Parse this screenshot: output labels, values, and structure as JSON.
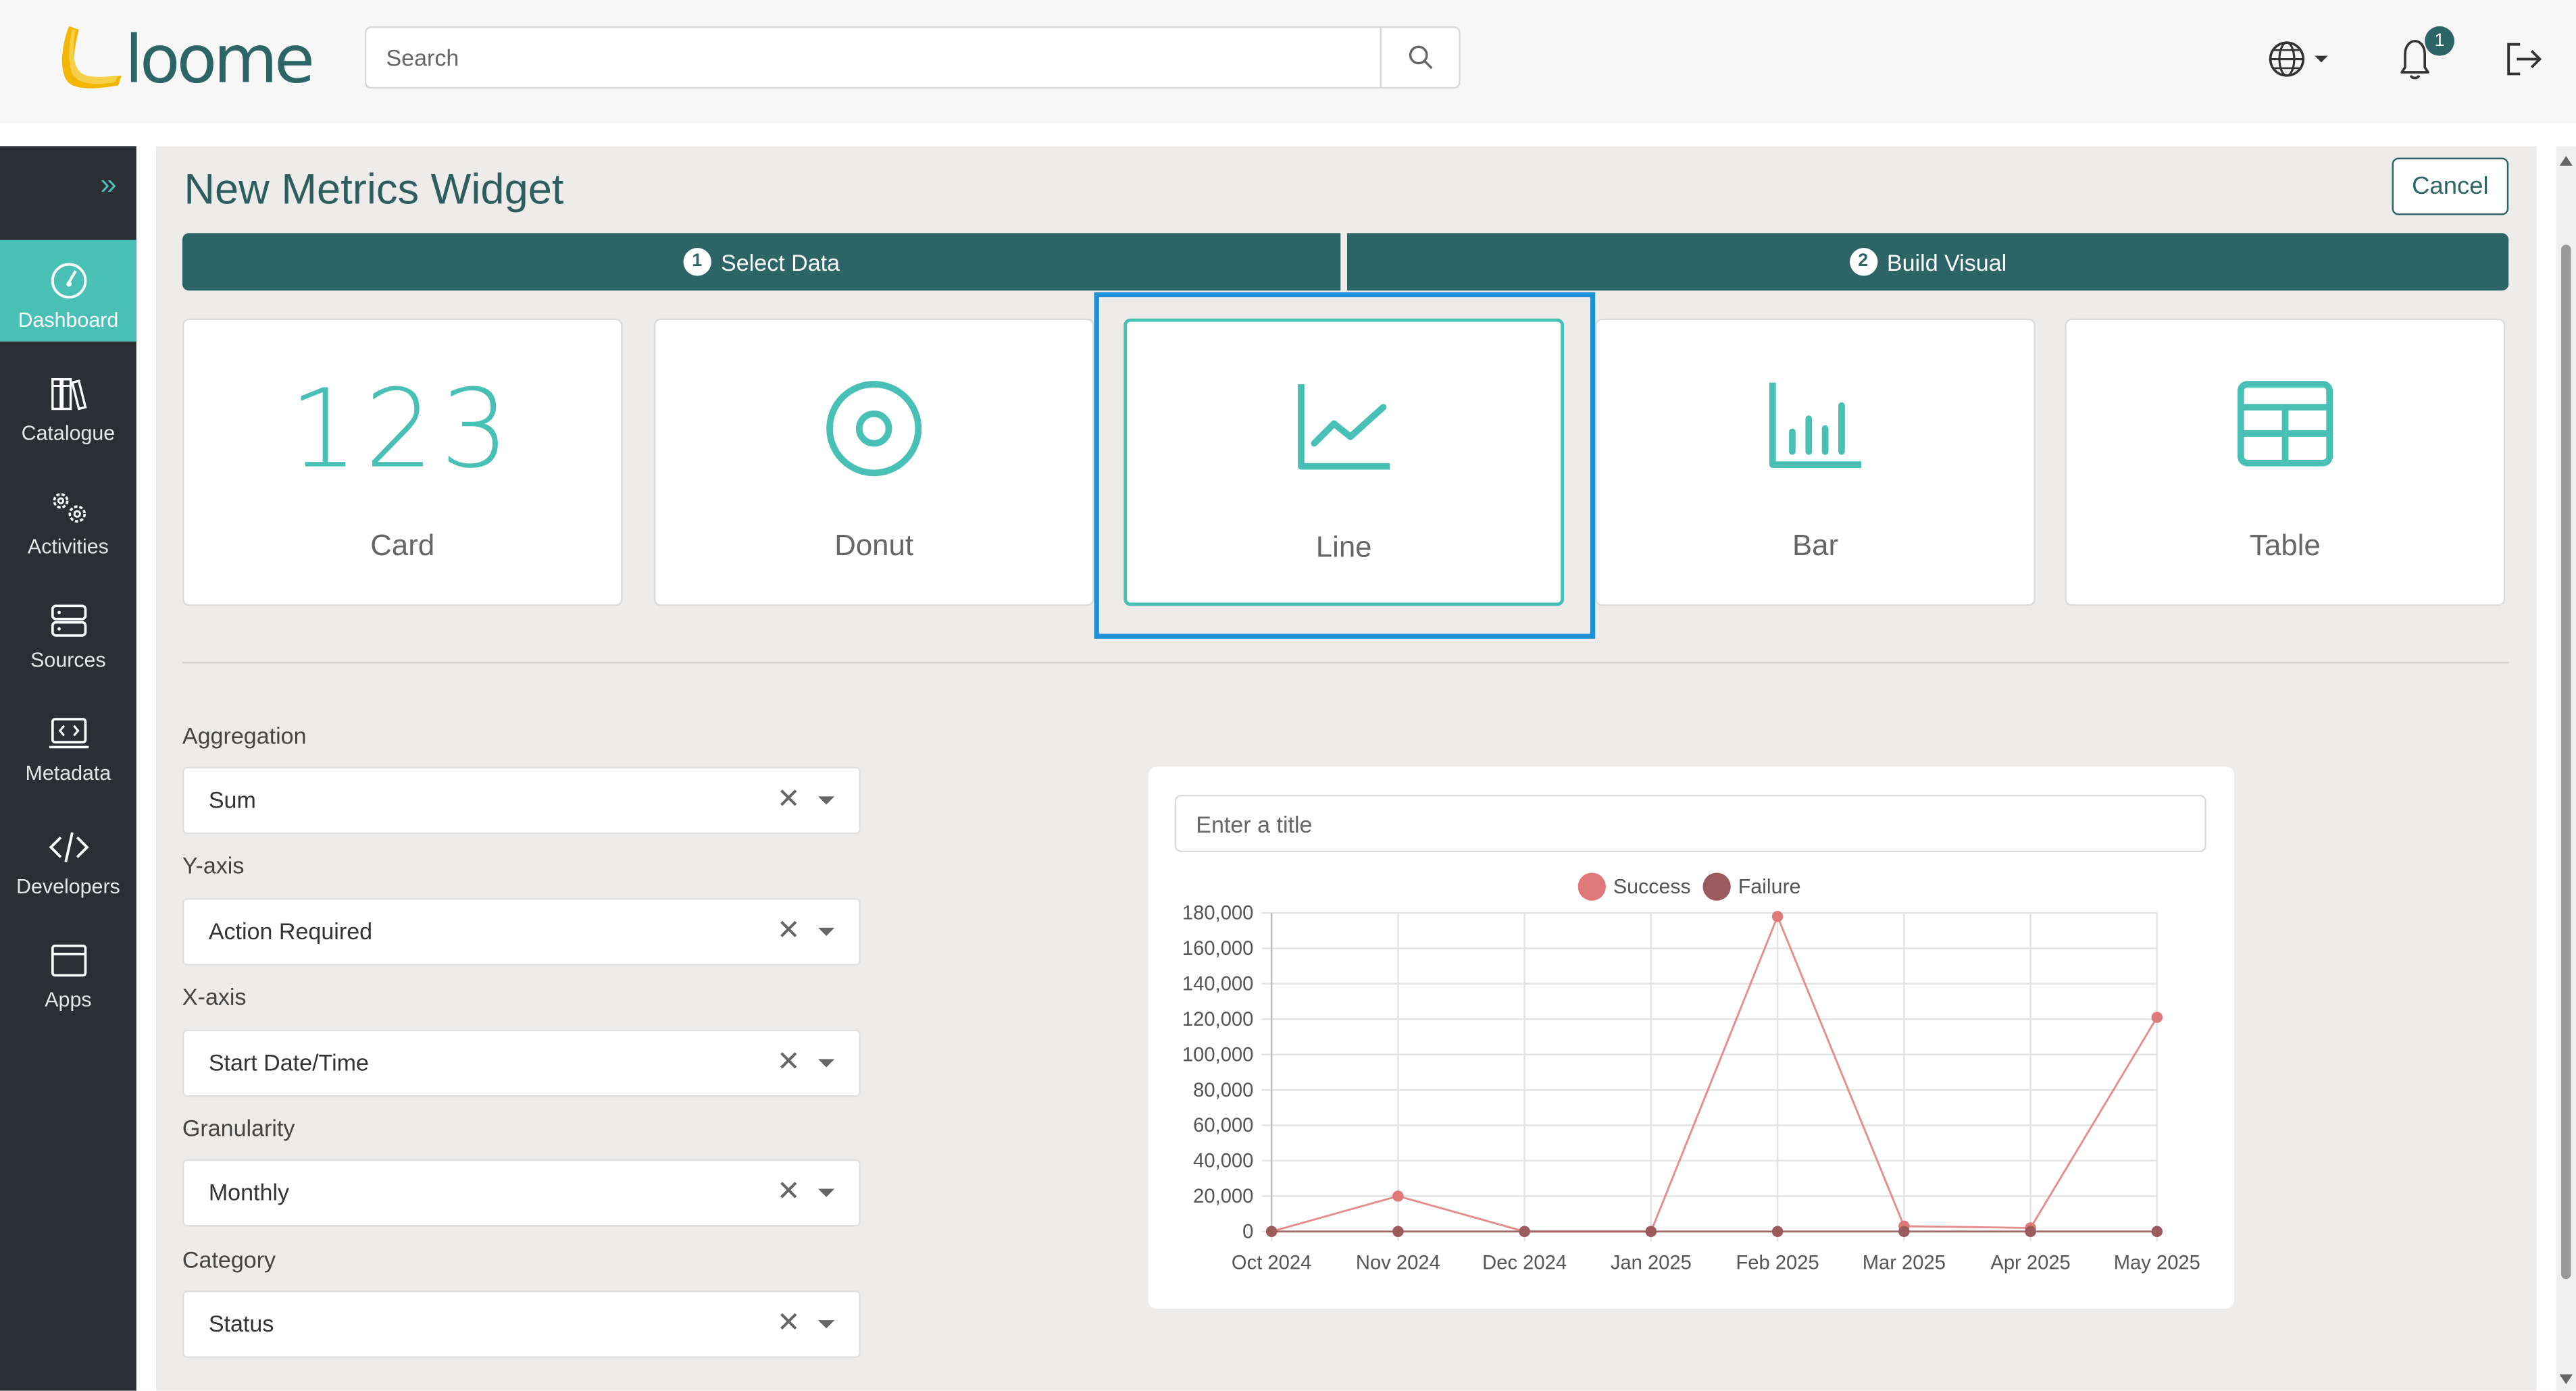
{
  "header": {
    "logo_text": "loome",
    "search_placeholder": "Search",
    "notification_count": "1"
  },
  "sidebar": {
    "items": [
      {
        "label": "Dashboard",
        "icon": "dashboard-icon",
        "active": true
      },
      {
        "label": "Catalogue",
        "icon": "catalogue-icon"
      },
      {
        "label": "Activities",
        "icon": "activities-icon"
      },
      {
        "label": "Sources",
        "icon": "sources-icon"
      },
      {
        "label": "Metadata",
        "icon": "metadata-icon"
      },
      {
        "label": "Developers",
        "icon": "developers-icon"
      },
      {
        "label": "Apps",
        "icon": "apps-icon"
      }
    ]
  },
  "page": {
    "title": "New Metrics Widget",
    "cancel_label": "Cancel"
  },
  "steps": [
    {
      "number": "1",
      "label": "Select Data"
    },
    {
      "number": "2",
      "label": "Build Visual"
    }
  ],
  "widget_types": [
    {
      "label": "Card",
      "icon_text": "123",
      "selected": false
    },
    {
      "label": "Donut",
      "icon": "donut-icon",
      "selected": false
    },
    {
      "label": "Line",
      "icon": "line-chart-icon",
      "selected": true
    },
    {
      "label": "Bar",
      "icon": "bar-chart-icon",
      "selected": false
    },
    {
      "label": "Table",
      "icon": "table-icon",
      "selected": false
    }
  ],
  "form": {
    "aggregation": {
      "label": "Aggregation",
      "value": "Sum"
    },
    "y_axis": {
      "label": "Y-axis",
      "value": "Action Required"
    },
    "x_axis": {
      "label": "X-axis",
      "value": "Start Date/Time"
    },
    "granularity": {
      "label": "Granularity",
      "value": "Monthly"
    },
    "category": {
      "label": "Category",
      "value": "Status"
    }
  },
  "chart_panel": {
    "title_placeholder": "Enter a title"
  },
  "colors": {
    "accent": "#49c0b6",
    "primary": "#2d6466",
    "sidebar": "#2b2f33",
    "highlight": "#1e90d6"
  },
  "chart_data": {
    "type": "line",
    "categories": [
      "Oct 2024",
      "Nov 2024",
      "Dec 2024",
      "Jan 2025",
      "Feb 2025",
      "Mar 2025",
      "Apr 2025",
      "May 2025"
    ],
    "series": [
      {
        "name": "Success",
        "color": "#e07a7a",
        "values": [
          0,
          20000,
          0,
          0,
          178000,
          3000,
          2000,
          121000
        ]
      },
      {
        "name": "Failure",
        "color": "#9b5a5e",
        "values": [
          0,
          0,
          0,
          0,
          0,
          0,
          0,
          0
        ]
      }
    ],
    "ylim": [
      0,
      180000
    ],
    "yticks": [
      "0",
      "20,000",
      "40,000",
      "60,000",
      "80,000",
      "100,000",
      "120,000",
      "140,000",
      "160,000",
      "180,000"
    ],
    "legend": "top",
    "grid": true
  }
}
